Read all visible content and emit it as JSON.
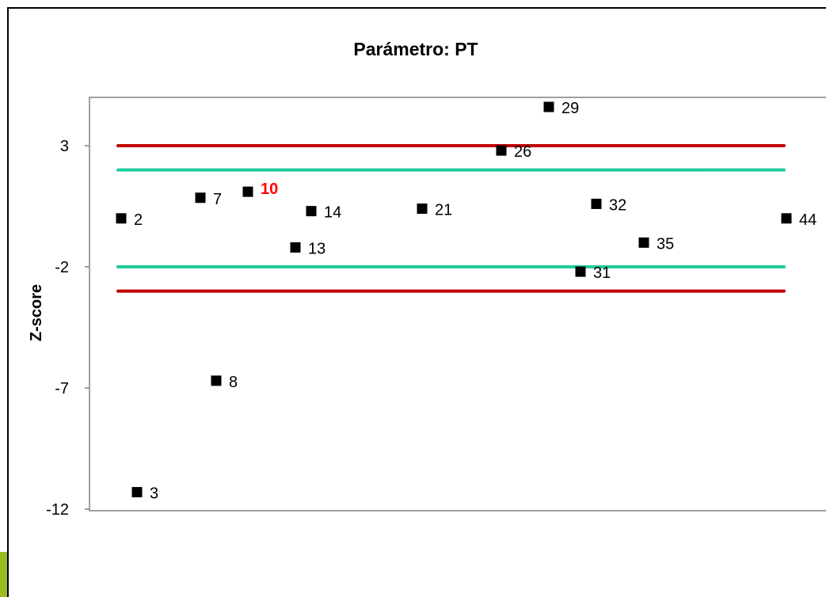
{
  "chart_data": {
    "type": "scatter",
    "title": "Parámetro: PT",
    "xlabel": "",
    "ylabel": "Z-score",
    "xlim": [
      0,
      46
    ],
    "ylim": [
      -12,
      4.7
    ],
    "yticks": [
      "3",
      "-2",
      "-7",
      "-12"
    ],
    "ytick_values": [
      3,
      -2,
      -7,
      -12
    ],
    "grid": false,
    "legend": "none",
    "points": [
      {
        "label": "2",
        "x": 2,
        "y": 0.0
      },
      {
        "label": "3",
        "x": 3,
        "y": -11.3
      },
      {
        "label": "7",
        "x": 7,
        "y": 0.85
      },
      {
        "label": "8",
        "x": 8,
        "y": -6.7
      },
      {
        "label": "10",
        "x": 10,
        "y": 1.1,
        "highlight": true
      },
      {
        "label": "13",
        "x": 13,
        "y": -1.2
      },
      {
        "label": "14",
        "x": 14,
        "y": 0.3
      },
      {
        "label": "21",
        "x": 21,
        "y": 0.4
      },
      {
        "label": "26",
        "x": 26,
        "y": 2.8
      },
      {
        "label": "29",
        "x": 29,
        "y": 4.6
      },
      {
        "label": "31",
        "x": 31,
        "y": -2.2
      },
      {
        "label": "32",
        "x": 32,
        "y": 0.6
      },
      {
        "label": "35",
        "x": 35,
        "y": -1.0
      },
      {
        "label": "44",
        "x": 44,
        "y": 0.0
      }
    ],
    "reference_lines": [
      {
        "y": 3,
        "color": "#c00000"
      },
      {
        "y": 2,
        "color": "#1fcc9b"
      },
      {
        "y": -2,
        "color": "#1fcc9b"
      },
      {
        "y": -3,
        "color": "#c00000"
      }
    ],
    "colors": {
      "marker": "#000000",
      "highlight_label": "#ff0000",
      "axis": "#808080",
      "accent": "#9bbb21"
    }
  }
}
